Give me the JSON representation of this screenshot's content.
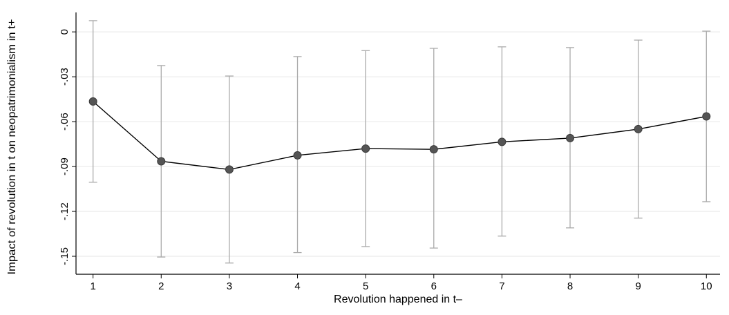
{
  "chart_data": {
    "type": "line",
    "x": [
      1,
      2,
      3,
      4,
      5,
      6,
      7,
      8,
      9,
      10
    ],
    "series": [
      {
        "values": [
          -0.0465,
          -0.0865,
          -0.092,
          -0.0825,
          -0.078,
          -0.0785,
          -0.0735,
          -0.071,
          -0.065,
          -0.0565
        ],
        "ci_upper": [
          0.0075,
          -0.0225,
          -0.0295,
          -0.0165,
          -0.0125,
          -0.011,
          -0.01,
          -0.0105,
          -0.0055,
          0.0005
        ],
        "ci_lower": [
          -0.1005,
          -0.1505,
          -0.1545,
          -0.1475,
          -0.1435,
          -0.1445,
          -0.1365,
          -0.131,
          -0.1245,
          -0.1135
        ]
      }
    ],
    "xlabel": "Revolution happened in t–",
    "ylabel": "Impact of revolution in t on neopatrimonialism in t+",
    "xticks": [
      "1",
      "2",
      "3",
      "4",
      "5",
      "6",
      "7",
      "8",
      "9",
      "10"
    ],
    "yticks": [
      {
        "value": 0,
        "label": "0"
      },
      {
        "value": -0.03,
        "label": "-.03"
      },
      {
        "value": -0.06,
        "label": "-.06"
      },
      {
        "value": -0.09,
        "label": "-.09"
      },
      {
        "value": -0.12,
        "label": "-.12"
      },
      {
        "value": -0.15,
        "label": "-.15"
      }
    ],
    "xlim": [
      0.75,
      10.2
    ],
    "ylim": [
      -0.162,
      0.013
    ],
    "grid": true,
    "colors": {
      "line": "#000000",
      "marker": "#555555",
      "error_bar": "#aaaaaa",
      "grid": "#e6e6e6"
    }
  }
}
